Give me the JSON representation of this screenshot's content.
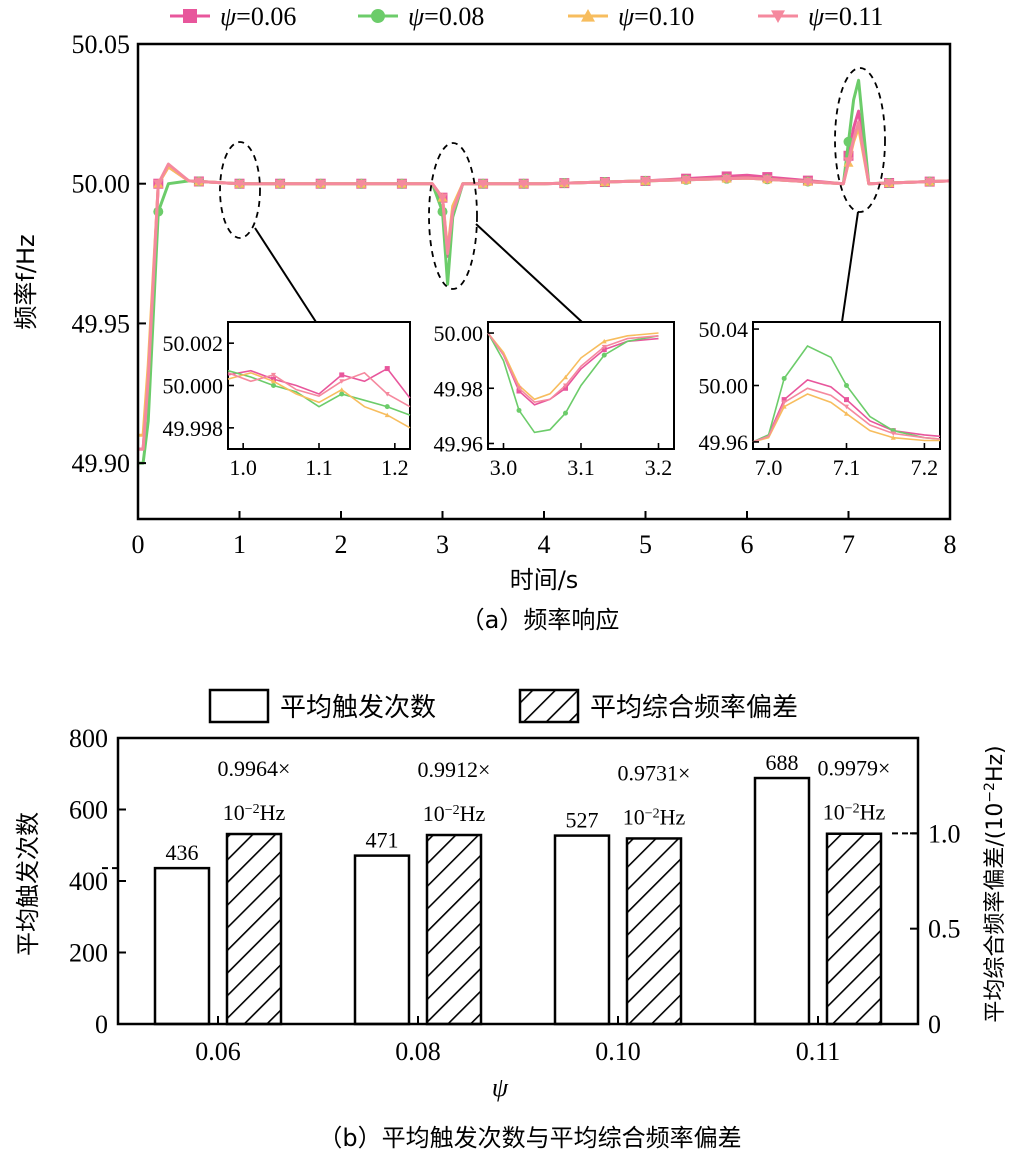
{
  "chart_data": [
    {
      "type": "line",
      "caption": "（a）频率响应",
      "xlabel": "时间/s",
      "ylabel": "频率f/Hz",
      "xlim": [
        0,
        8
      ],
      "ylim": [
        49.88,
        50.05
      ],
      "xticks": [
        "0",
        "1",
        "2",
        "3",
        "4",
        "5",
        "6",
        "7",
        "8"
      ],
      "yticks": [
        "49.90",
        "49.95",
        "50.00",
        "50.05"
      ],
      "legend_position": "top",
      "series": [
        {
          "name": "ψ=0.06",
          "color": "#e8569c",
          "marker": "square",
          "x": [
            0,
            0.05,
            0.1,
            0.2,
            0.3,
            0.5,
            1.0,
            2.0,
            2.9,
            3.0,
            3.05,
            3.1,
            3.2,
            4.0,
            5.0,
            6.0,
            6.95,
            7.05,
            7.1,
            7.2,
            8.0
          ],
          "y": [
            49.905,
            49.905,
            49.93,
            50.0,
            50.006,
            50.001,
            50.0,
            50.0,
            50.0,
            49.995,
            49.974,
            49.99,
            50.0,
            50.0,
            50.001,
            50.003,
            50.0,
            50.02,
            50.026,
            50.0,
            50.001
          ]
        },
        {
          "name": "ψ=0.08",
          "color": "#6ccc6a",
          "marker": "circle",
          "x": [
            0,
            0.05,
            0.1,
            0.2,
            0.3,
            0.5,
            1.0,
            2.0,
            2.9,
            3.0,
            3.05,
            3.1,
            3.2,
            4.0,
            5.0,
            6.0,
            6.95,
            7.05,
            7.1,
            7.2,
            8.0
          ],
          "y": [
            49.9,
            49.9,
            49.915,
            49.99,
            50.0,
            50.001,
            50.0,
            50.0,
            50.0,
            49.99,
            49.964,
            49.988,
            50.0,
            50.0,
            50.001,
            50.002,
            50.0,
            50.03,
            50.037,
            50.0,
            50.001
          ]
        },
        {
          "name": "ψ=0.10",
          "color": "#f7bd5e",
          "marker": "triangle-up",
          "x": [
            0,
            0.05,
            0.1,
            0.2,
            0.3,
            0.5,
            1.0,
            2.0,
            2.9,
            3.0,
            3.05,
            3.1,
            3.2,
            4.0,
            5.0,
            6.0,
            6.95,
            7.05,
            7.1,
            7.2,
            8.0
          ],
          "y": [
            49.91,
            49.91,
            49.935,
            50.0,
            50.006,
            50.001,
            50.0,
            50.0,
            50.0,
            49.995,
            49.976,
            49.992,
            50.0,
            50.0,
            50.001,
            50.002,
            50.0,
            50.015,
            50.02,
            50.0,
            50.001
          ]
        },
        {
          "name": "ψ=0.11",
          "color": "#f5899e",
          "marker": "triangle-down",
          "x": [
            0,
            0.05,
            0.1,
            0.2,
            0.3,
            0.5,
            1.0,
            2.0,
            2.9,
            3.0,
            3.05,
            3.1,
            3.2,
            4.0,
            5.0,
            6.0,
            6.95,
            7.05,
            7.1,
            7.2,
            8.0
          ],
          "y": [
            49.905,
            49.905,
            49.93,
            50.0,
            50.007,
            50.001,
            50.0,
            50.0,
            50.0,
            49.995,
            49.975,
            49.99,
            50.0,
            50.0,
            50.001,
            50.002,
            50.0,
            50.016,
            50.022,
            50.0,
            50.001
          ]
        }
      ],
      "insets": [
        {
          "xlim": [
            0.98,
            1.22
          ],
          "ylim": [
            49.997,
            50.003
          ],
          "xticks": [
            "1.0",
            "1.1",
            "1.2"
          ],
          "yticks": [
            "49.998",
            "50.000",
            "50.002"
          ],
          "series_x": [
            0.98,
            1.01,
            1.04,
            1.07,
            1.1,
            1.13,
            1.16,
            1.19,
            1.22
          ],
          "series_y": [
            [
              50.0005,
              50.0007,
              50.0003,
              50.0,
              49.9996,
              50.0005,
              50.0002,
              50.0008,
              49.9994
            ],
            [
              50.0007,
              50.0004,
              50.0,
              49.9997,
              49.999,
              49.9996,
              49.9993,
              49.999,
              49.9986
            ],
            [
              50.0003,
              50.0006,
              50.0002,
              49.9996,
              49.9992,
              49.9998,
              49.999,
              49.9986,
              49.998
            ],
            [
              50.0006,
              50.0002,
              50.0005,
              49.9998,
              49.9995,
              50.0002,
              50.0006,
              49.9996,
              49.999
            ]
          ]
        },
        {
          "xlim": [
            2.98,
            3.22
          ],
          "ylim": [
            49.958,
            50.004
          ],
          "xticks": [
            "3.0",
            "3.1",
            "3.2"
          ],
          "yticks": [
            "49.96",
            "49.98",
            "50.00"
          ],
          "series_x": [
            2.98,
            3.0,
            3.02,
            3.04,
            3.06,
            3.08,
            3.1,
            3.13,
            3.16,
            3.2
          ],
          "series_y": [
            [
              50.0,
              49.992,
              49.979,
              49.974,
              49.976,
              49.98,
              49.987,
              49.994,
              49.997,
              49.998
            ],
            [
              50.0,
              49.99,
              49.972,
              49.964,
              49.965,
              49.971,
              49.981,
              49.992,
              49.997,
              49.999
            ],
            [
              50.0,
              49.993,
              49.981,
              49.976,
              49.978,
              49.984,
              49.991,
              49.997,
              49.999,
              50.0
            ],
            [
              50.0,
              49.992,
              49.98,
              49.975,
              49.976,
              49.981,
              49.988,
              49.995,
              49.998,
              49.999
            ]
          ]
        },
        {
          "xlim": [
            6.98,
            7.22
          ],
          "ylim": [
            49.955,
            50.045
          ],
          "xticks": [
            "7.0",
            "7.1",
            "7.2"
          ],
          "yticks": [
            "49.96",
            "50.00",
            "50.04"
          ],
          "series_x": [
            6.98,
            7.0,
            7.02,
            7.05,
            7.08,
            7.1,
            7.13,
            7.16,
            7.2,
            7.22
          ],
          "series_y": [
            [
              49.96,
              49.965,
              49.99,
              50.004,
              49.999,
              49.99,
              49.975,
              49.968,
              49.965,
              49.964
            ],
            [
              49.96,
              49.965,
              50.005,
              50.028,
              50.02,
              50.0,
              49.978,
              49.968,
              49.963,
              49.962
            ],
            [
              49.96,
              49.963,
              49.985,
              49.994,
              49.988,
              49.98,
              49.968,
              49.963,
              49.961,
              49.961
            ],
            [
              49.96,
              49.964,
              49.988,
              49.998,
              49.993,
              49.985,
              49.972,
              49.966,
              49.963,
              49.962
            ]
          ]
        }
      ]
    },
    {
      "type": "bar",
      "caption": "（b）平均触发次数与平均综合频率偏差",
      "xlabel": "ψ",
      "ylabel": "平均触发次数",
      "ylabel_right_prefix": "平均综合频率偏差/(10",
      "ylabel_right_sup": "−2",
      "ylabel_right_suffix": "Hz)",
      "categories": [
        "0.06",
        "0.08",
        "0.10",
        "0.11"
      ],
      "ylim": [
        0,
        800
      ],
      "ylim_right": [
        0,
        1.5
      ],
      "yticks": [
        "0",
        "200",
        "400",
        "600",
        "800"
      ],
      "yticks_right": [
        "0",
        "0.5",
        "1.0"
      ],
      "legend_position": "top",
      "series": [
        {
          "name": "平均触发次数",
          "pattern": "none",
          "values": [
            436,
            471,
            527,
            688
          ],
          "labels": [
            "436",
            "471",
            "527",
            "688"
          ]
        },
        {
          "name": "平均综合频率偏差",
          "pattern": "hatch",
          "axis": "right",
          "values": [
            0.9964,
            0.9912,
            0.9731,
            0.9979
          ],
          "label_top": [
            "0.9964×",
            "0.9912×",
            "0.9731×",
            "0.9979×"
          ],
          "label_unit_base": "10",
          "label_unit_sup": "−2",
          "label_unit_suffix": "Hz"
        }
      ]
    }
  ]
}
